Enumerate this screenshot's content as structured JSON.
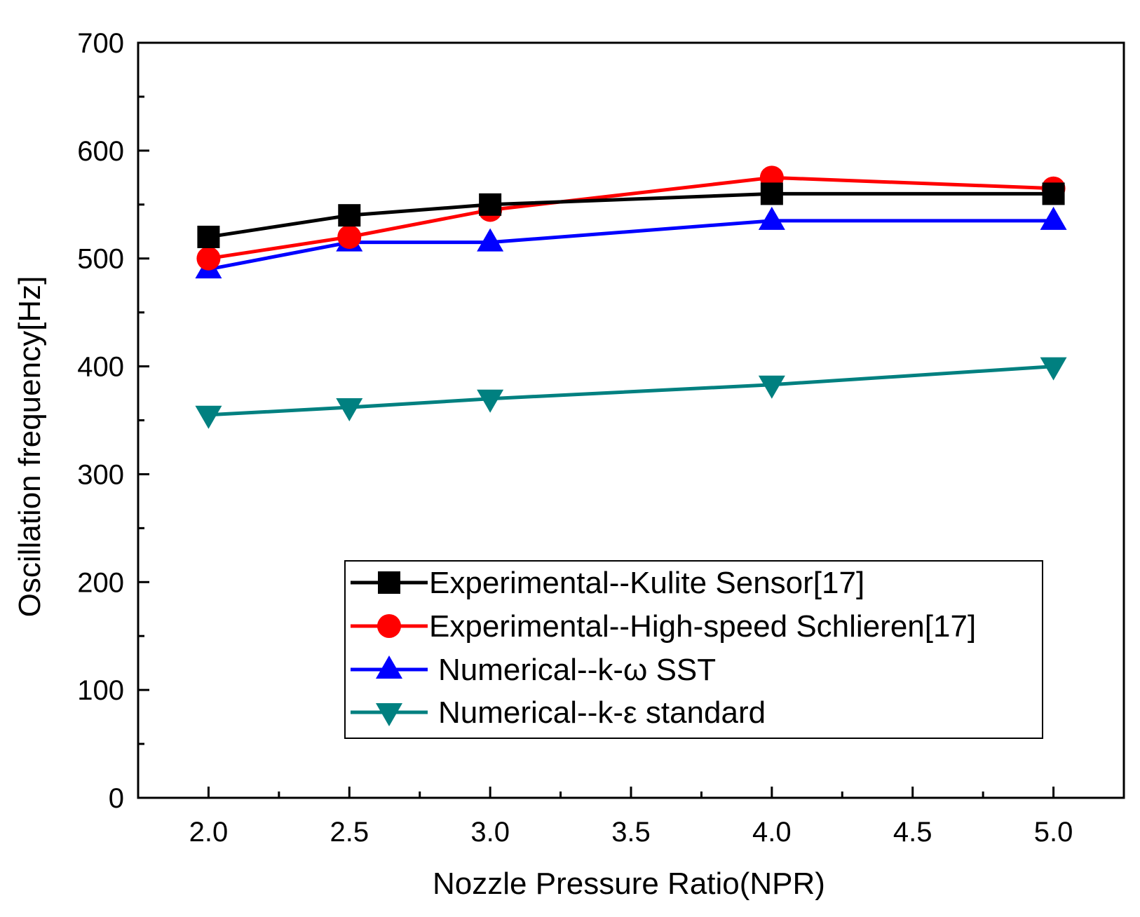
{
  "chart_data": {
    "type": "line",
    "title": "",
    "xlabel": "Nozzle Pressure Ratio(NPR)",
    "ylabel": "Oscillation frequency[Hz]",
    "xlim": [
      1.75,
      5.25
    ],
    "ylim": [
      0,
      700
    ],
    "x_major_ticks": [
      2.0,
      2.5,
      3.0,
      3.5,
      4.0,
      4.5,
      5.0
    ],
    "x_tick_labels": [
      "2.0",
      "2.5",
      "3.0",
      "3.5",
      "4.0",
      "4.5",
      "5.0"
    ],
    "y_major_ticks": [
      0,
      100,
      200,
      300,
      400,
      500,
      600,
      700
    ],
    "y_tick_labels": [
      "0",
      "100",
      "200",
      "300",
      "400",
      "500",
      "600",
      "700"
    ],
    "grid": false,
    "legend_position": "bottom-right",
    "series": [
      {
        "name": "Experimental--Kulite Sensor[17]",
        "color": "#000000",
        "marker": "square",
        "x": [
          2.0,
          2.5,
          3.0,
          4.0,
          5.0
        ],
        "y": [
          520,
          540,
          550,
          560,
          560
        ]
      },
      {
        "name": "Experimental--High-speed Schlieren[17]",
        "color": "#ff0000",
        "marker": "circle",
        "x": [
          2.0,
          2.5,
          3.0,
          4.0,
          5.0
        ],
        "y": [
          500,
          520,
          545,
          575,
          565
        ]
      },
      {
        "name": "Numerical--k-ω SST",
        "color": "#0000ff",
        "marker": "triangle-up",
        "x": [
          2.0,
          2.5,
          3.0,
          4.0,
          5.0
        ],
        "y": [
          490,
          515,
          515,
          535,
          535
        ]
      },
      {
        "name": "Numerical--k-ε standard",
        "color": "#008080",
        "marker": "triangle-down",
        "x": [
          2.0,
          2.5,
          3.0,
          4.0,
          5.0
        ],
        "y": [
          355,
          362,
          370,
          383,
          400
        ]
      }
    ]
  }
}
